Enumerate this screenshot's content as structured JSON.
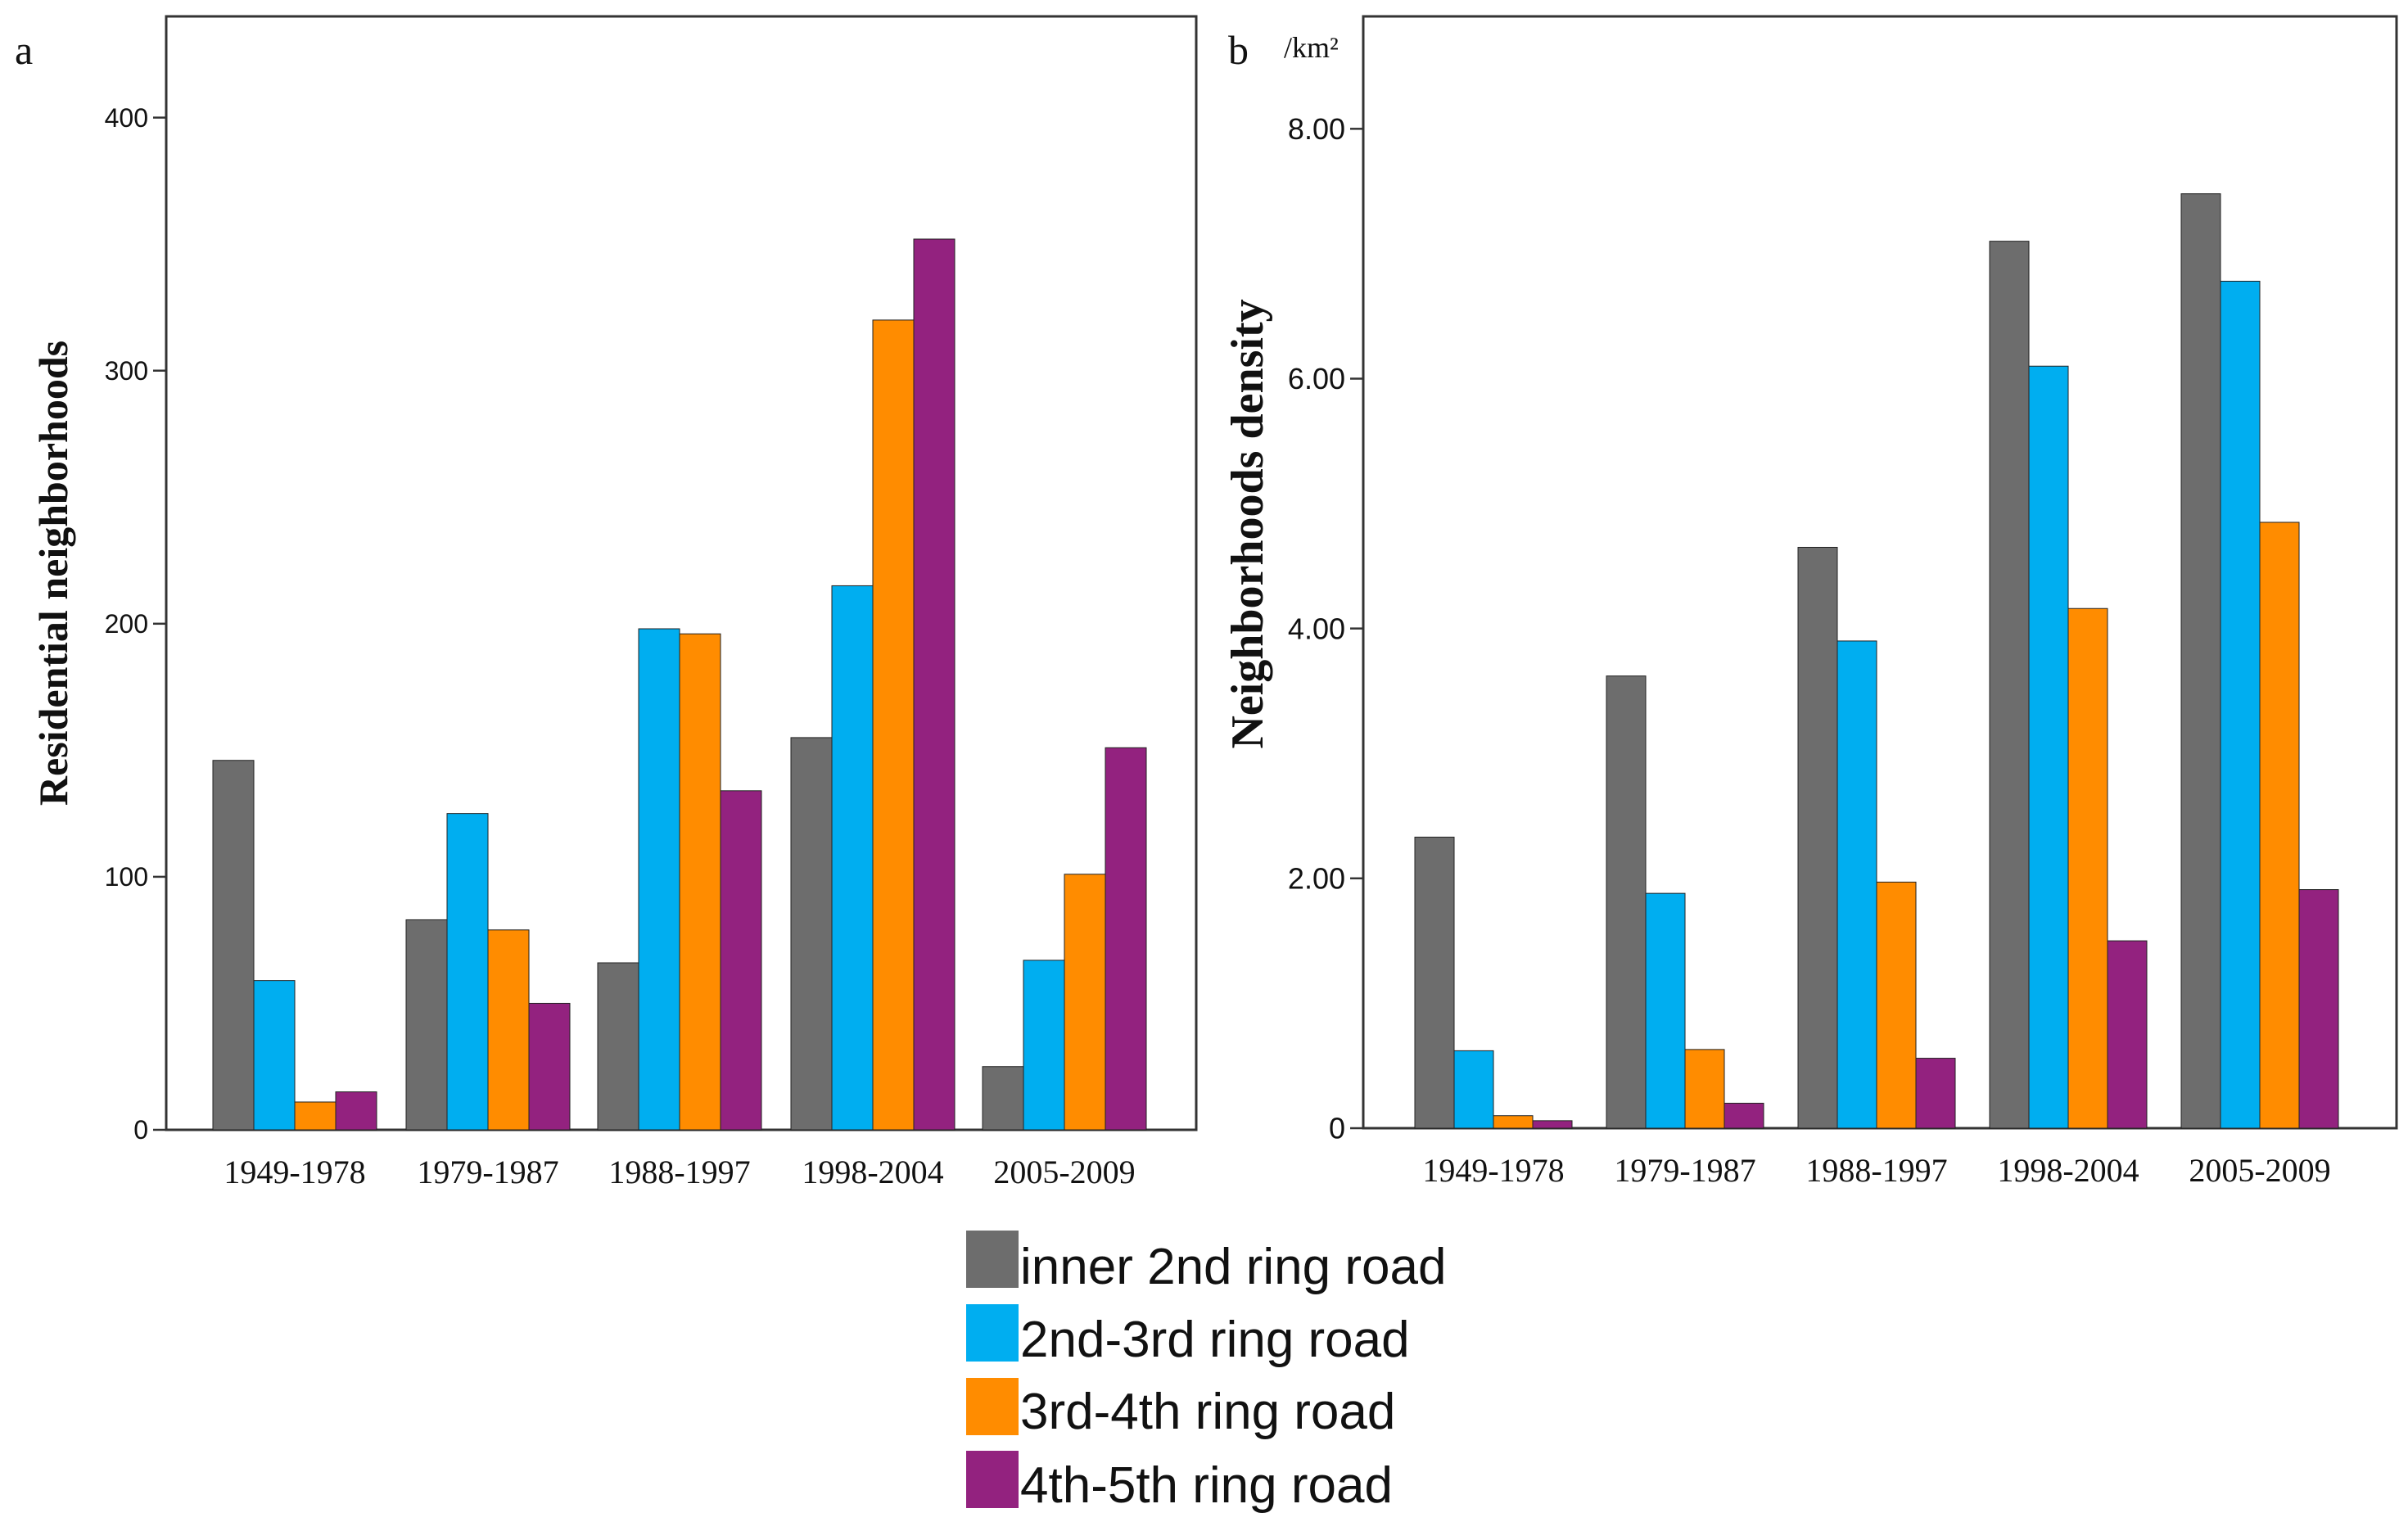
{
  "colors": {
    "inner2": "#6d6d6d",
    "r23": "#00aef0",
    "r34": "#ff8c00",
    "r45": "#93227f",
    "axis": "#333333",
    "text": "#111111"
  },
  "legend": [
    {
      "label": "inner 2nd ring road",
      "color_key": "inner2"
    },
    {
      "label": "2nd-3rd ring road",
      "color_key": "r23"
    },
    {
      "label": "3rd-4th ring road",
      "color_key": "r34"
    },
    {
      "label": "4th-5th ring road",
      "color_key": "r45"
    }
  ],
  "chart_data": [
    {
      "panel_label": "a",
      "type": "bar",
      "title": "",
      "xlabel": "",
      "ylabel": "Residential neighborhoods",
      "unit_label": "",
      "ylim": [
        0,
        440
      ],
      "yticks": [
        0,
        100,
        200,
        300,
        400
      ],
      "ytick_labels": [
        "0",
        "100",
        "200",
        "300",
        "400"
      ],
      "categories": [
        "1949-1978",
        "1979-1987",
        "1988-1997",
        "1998-2004",
        "2005-2009"
      ],
      "series": [
        {
          "name": "inner 2nd ring road",
          "color_key": "inner2",
          "values": [
            146,
            83,
            66,
            155,
            25
          ]
        },
        {
          "name": "2nd-3rd ring road",
          "color_key": "r23",
          "values": [
            59,
            125,
            198,
            215,
            67
          ]
        },
        {
          "name": "3rd-4th ring road",
          "color_key": "r34",
          "values": [
            11,
            79,
            196,
            320,
            101
          ]
        },
        {
          "name": "4th-5th ring road",
          "color_key": "r45",
          "values": [
            15,
            50,
            134,
            352,
            151
          ]
        }
      ]
    },
    {
      "panel_label": "b",
      "type": "bar",
      "title": "",
      "xlabel": "",
      "ylabel": "Neighborhoods density",
      "unit_label": "/km²",
      "ylim": [
        0,
        8.9
      ],
      "yticks": [
        0,
        2,
        4,
        6,
        8
      ],
      "ytick_labels": [
        "0",
        "2.00",
        "4.00",
        "6.00",
        "8.00"
      ],
      "categories": [
        "1949-1978",
        "1979-1987",
        "1988-1997",
        "1998-2004",
        "2005-2009"
      ],
      "series": [
        {
          "name": "inner 2nd ring road",
          "color_key": "inner2",
          "values": [
            2.33,
            3.62,
            4.65,
            7.1,
            7.48
          ]
        },
        {
          "name": "2nd-3rd ring road",
          "color_key": "r23",
          "values": [
            0.62,
            1.88,
            3.9,
            6.1,
            6.78
          ]
        },
        {
          "name": "3rd-4th ring road",
          "color_key": "r34",
          "values": [
            0.1,
            0.63,
            1.97,
            4.16,
            4.85
          ]
        },
        {
          "name": "4th-5th ring road",
          "color_key": "r45",
          "values": [
            0.06,
            0.2,
            0.56,
            1.5,
            1.91
          ]
        }
      ]
    }
  ]
}
